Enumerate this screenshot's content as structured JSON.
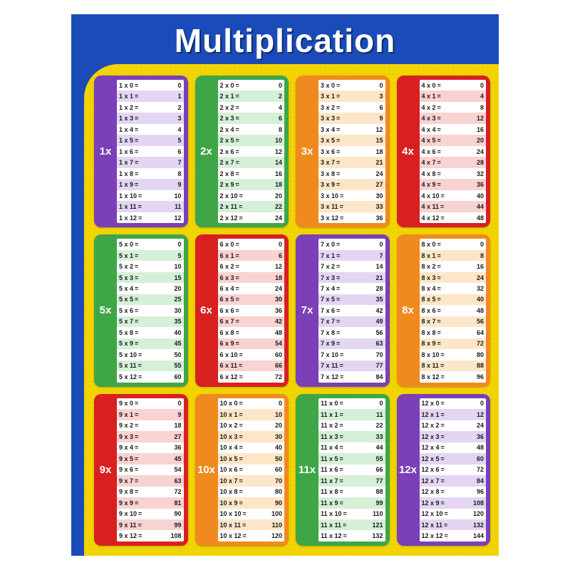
{
  "title": "Multiplication",
  "background_blue": "#1a4bb8",
  "yellow": "#f2d400",
  "row_light": "#ffffff",
  "max_multiplier": 12,
  "tables": [
    {
      "n": 1,
      "label": "1x",
      "color": "#7b3fb7",
      "tint": "#e4d6f3"
    },
    {
      "n": 2,
      "label": "2x",
      "color": "#3fa648",
      "tint": "#d6f0d8"
    },
    {
      "n": 3,
      "label": "3x",
      "color": "#f08a1e",
      "tint": "#fde6c8"
    },
    {
      "n": 4,
      "label": "4x",
      "color": "#d92020",
      "tint": "#f9d2d2"
    },
    {
      "n": 5,
      "label": "5x",
      "color": "#3fa648",
      "tint": "#d6f0d8"
    },
    {
      "n": 6,
      "label": "6x",
      "color": "#d92020",
      "tint": "#f9d2d2"
    },
    {
      "n": 7,
      "label": "7x",
      "color": "#7b3fb7",
      "tint": "#e4d6f3"
    },
    {
      "n": 8,
      "label": "8x",
      "color": "#f08a1e",
      "tint": "#fde6c8"
    },
    {
      "n": 9,
      "label": "9x",
      "color": "#d92020",
      "tint": "#f9d2d2"
    },
    {
      "n": 10,
      "label": "10x",
      "color": "#f08a1e",
      "tint": "#fde6c8"
    },
    {
      "n": 11,
      "label": "11x",
      "color": "#3fa648",
      "tint": "#d6f0d8"
    },
    {
      "n": 12,
      "label": "12x",
      "color": "#7b3fb7",
      "tint": "#e4d6f3"
    }
  ]
}
